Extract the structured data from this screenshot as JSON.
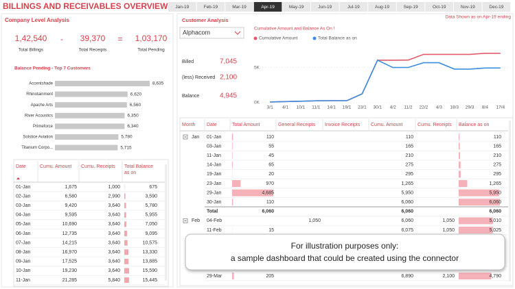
{
  "header": {
    "title": "BILLINGS AND RECEIVABLES OVERVIEW",
    "months": [
      "Jan-19",
      "Feb-19",
      "Mar-19",
      "Apr-19",
      "May-19",
      "Jun-19",
      "Jul-19",
      "Aug-19",
      "Sep-19",
      "Oct-19",
      "Nov-19",
      "Dec-19"
    ],
    "selected": "Apr-19",
    "note": "Data Shown as on Apr-19 ending"
  },
  "company": {
    "title": "Company Level Analysis",
    "kpis": [
      {
        "value": "1,42,540",
        "label": "Total Billings"
      },
      {
        "value": "39,370",
        "label": "Total Receipts"
      },
      {
        "value": "1,03,170",
        "label": "Total Pending"
      }
    ],
    "operators": [
      "-",
      "="
    ]
  },
  "chart_data": [
    {
      "type": "bar",
      "orientation": "horizontal",
      "title": "Balance Pending - Top 7 Customers",
      "categories": [
        "Accentshade",
        "Rhinotainment",
        "Apache Arts",
        "River Acoustics",
        "Primeforce",
        "Solstice Aviation",
        "Titanium Corpo..."
      ],
      "values": [
        8635,
        6620,
        6560,
        6350,
        6340,
        5780,
        5715
      ],
      "value_labels": [
        "8,635",
        "6,620",
        "6,560",
        "6,350",
        "6,340",
        "5,780",
        "5,715"
      ],
      "color": "#c8c8c8"
    },
    {
      "type": "line",
      "title": "Cumulative Amount and Balance As On !",
      "categories": [
        "3/1",
        "4/1",
        "10/1",
        "11/1",
        "14/1",
        "19/1",
        "23/1",
        "30/1",
        "4/2",
        "11/2",
        "22/2",
        "4/3",
        "18/3",
        "29/3",
        "8/4",
        "17/4"
      ],
      "series": [
        {
          "name": "Cumulative Amount",
          "color": "#e05a6a",
          "values": [
            110,
            165,
            210,
            275,
            295,
            295,
            1265,
            6060,
            6060,
            6075,
            6890,
            6890,
            6890,
            6890,
            7045,
            7045
          ]
        },
        {
          "name": "Total Balance as on",
          "color": "#3b8de0",
          "values": [
            110,
            165,
            210,
            275,
            295,
            295,
            1265,
            6060,
            5010,
            5025,
            5700,
            5700,
            4790,
            4790,
            4945,
            4945
          ]
        }
      ],
      "ylim": [
        0,
        8000
      ],
      "yticks": [
        {
          "value": 0,
          "label": "0K"
        },
        {
          "value": 5000,
          "label": "5K"
        }
      ],
      "grid": true
    }
  ],
  "left_table": {
    "columns": [
      "Date",
      "Cumu. Amount",
      "Cumu. Receipts",
      "Total Balance as on"
    ],
    "rows": [
      [
        "01-Jan",
        "1,675",
        "1,000",
        "675"
      ],
      [
        "02-Jan",
        "6,580",
        "2,990",
        "3,590"
      ],
      [
        "03-Jan",
        "9,420",
        "3,640",
        "5,780"
      ],
      [
        "04-Jan",
        "9,595",
        "3,640",
        "5,955"
      ],
      [
        "05-Jan",
        "10,690",
        "3,640",
        "7,050"
      ],
      [
        "06-Jan",
        "12,735",
        "3,640",
        "9,095"
      ],
      [
        "07-Jan",
        "14,215",
        "3,640",
        "10,575"
      ],
      [
        "08-Jan",
        "16,970",
        "3,640",
        "13,330"
      ],
      [
        "09-Jan",
        "17,525",
        "3,640",
        "13,885"
      ],
      [
        "10-Jan",
        "19,230",
        "3,640",
        "15,590"
      ],
      [
        "11-Jan",
        "21,285",
        "5,840",
        "15,445"
      ]
    ]
  },
  "customer": {
    "title": "Customer Analysis",
    "selected": "Alphacom",
    "metrics": [
      {
        "label": "Billed",
        "value": "7,045"
      },
      {
        "label": "(less) Received",
        "value": "2,100"
      },
      {
        "label": "Balance",
        "value": "4,945"
      }
    ]
  },
  "right_table": {
    "columns": [
      "Month",
      "Date",
      "Total Amount",
      "General Receipts",
      "Invoice Receipts",
      "Cumu. Amount",
      "Cumu. Receipts",
      "Balance as on"
    ],
    "rows": [
      [
        "Jan",
        "01-Jan",
        "110",
        null,
        null,
        "110",
        null,
        "110"
      ],
      [
        null,
        "03-Jan",
        "55",
        null,
        null,
        "165",
        null,
        "165"
      ],
      [
        null,
        "11-Jan",
        "45",
        null,
        null,
        "210",
        null,
        "210"
      ],
      [
        null,
        "14-Jan",
        "65",
        null,
        null,
        "275",
        null,
        "275"
      ],
      [
        null,
        "19-Jan",
        "20",
        null,
        null,
        "295",
        null,
        "295"
      ],
      [
        null,
        "23-Jan",
        "970",
        null,
        null,
        "1,265",
        null,
        "1,265"
      ],
      [
        null,
        "29-Jan",
        "4,685",
        null,
        null,
        "5,950",
        null,
        "5,950"
      ],
      [
        null,
        "30-Jan",
        "110",
        null,
        null,
        "6,060",
        null,
        "6,060"
      ],
      [
        null,
        "Total",
        "6,060",
        null,
        null,
        "6,060",
        null,
        "6,060"
      ],
      [
        "Feb",
        "04-Feb",
        null,
        "1,050",
        null,
        "6,060",
        "1,050",
        "5,010"
      ],
      [
        null,
        "11-Feb",
        "15",
        null,
        null,
        "6,075",
        "1,050",
        "5,025"
      ],
      [
        null,
        "29-Mar",
        "205",
        null,
        null,
        "6,890",
        "2,100",
        "4,790"
      ]
    ]
  },
  "overlay": {
    "lines": [
      "For illustration purposes only:",
      "a sample dashboard that could be created using the connector"
    ]
  }
}
